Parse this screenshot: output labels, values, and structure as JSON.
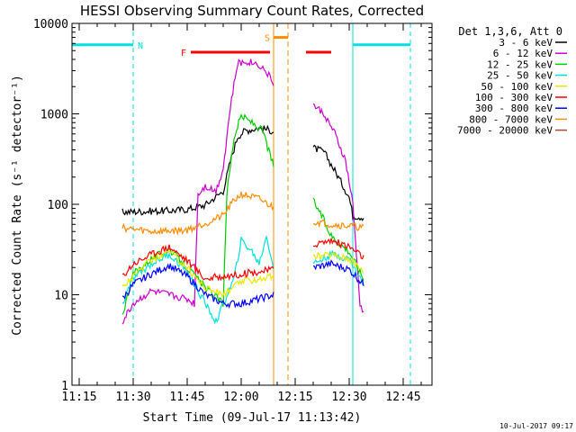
{
  "chart_data": {
    "type": "line",
    "title": "HESSI Observing Summary Count Rates, Corrected",
    "xlabel": "Start Time (09-Jul-17 11:13:42)",
    "ylabel": "Corrected Count Rate (s⁻¹ detector⁻¹)",
    "y_scale": "log",
    "ylim": [
      1,
      10000
    ],
    "xlim_minutes": [
      "11:13",
      "12:53"
    ],
    "x_ticks": [
      "11:15",
      "11:30",
      "11:45",
      "12:00",
      "12:15",
      "12:30",
      "12:45"
    ],
    "y_ticks": [
      "1",
      "10",
      "100",
      "1000",
      "10000"
    ],
    "footer": "10-Jul-2017 09:17",
    "legend_header": "Det 1,3,6, Att 0",
    "legend_position": "outside-right",
    "series": [
      {
        "name": "3 - 6 keV",
        "color": "#000000",
        "points": [
          [
            "11:27",
            82
          ],
          [
            "11:35",
            84
          ],
          [
            "11:40",
            85
          ],
          [
            "11:45",
            88
          ],
          [
            "11:50",
            98
          ],
          [
            "11:55",
            140
          ],
          [
            "11:57",
            300
          ],
          [
            "11:59",
            560
          ],
          [
            "12:01",
            650
          ],
          [
            "12:05",
            700
          ],
          [
            "12:08",
            660
          ],
          [
            "12:09",
            640
          ],
          [
            "12:20",
            420
          ],
          [
            "12:23",
            380
          ],
          [
            "12:27",
            200
          ],
          [
            "12:30",
            120
          ],
          [
            "12:31",
            75
          ],
          [
            "12:34",
            72
          ]
        ]
      },
      {
        "name": "6 - 12 keV",
        "color": "#cc00cc",
        "points": [
          [
            "11:27",
            5
          ],
          [
            "11:30",
            8
          ],
          [
            "11:35",
            11
          ],
          [
            "11:40",
            10
          ],
          [
            "11:45",
            9
          ],
          [
            "11:47",
            8
          ],
          [
            "11:48",
            130
          ],
          [
            "11:50",
            160
          ],
          [
            "11:53",
            140
          ],
          [
            "11:55",
            250
          ],
          [
            "11:57",
            1200
          ],
          [
            "11:59",
            3600
          ],
          [
            "12:02",
            3800
          ],
          [
            "12:05",
            3500
          ],
          [
            "12:07",
            2900
          ],
          [
            "12:09",
            2200
          ],
          [
            "12:20",
            1250
          ],
          [
            "12:23",
            1000
          ],
          [
            "12:26",
            600
          ],
          [
            "12:29",
            300
          ],
          [
            "12:31",
            100
          ],
          [
            "12:33",
            8
          ],
          [
            "12:34",
            6
          ]
        ]
      },
      {
        "name": "12 - 25 keV",
        "color": "#00cc00",
        "points": [
          [
            "11:27",
            6
          ],
          [
            "11:30",
            17
          ],
          [
            "11:35",
            25
          ],
          [
            "11:40",
            32
          ],
          [
            "11:45",
            20
          ],
          [
            "11:50",
            12
          ],
          [
            "11:55",
            8
          ],
          [
            "11:56",
            130
          ],
          [
            "11:58",
            550
          ],
          [
            "12:00",
            950
          ],
          [
            "12:03",
            800
          ],
          [
            "12:06",
            650
          ],
          [
            "12:08",
            350
          ],
          [
            "12:09",
            270
          ],
          [
            "12:20",
            110
          ],
          [
            "12:22",
            80
          ],
          [
            "12:25",
            45
          ],
          [
            "12:30",
            30
          ],
          [
            "12:34",
            15
          ]
        ]
      },
      {
        "name": "25 - 50 keV",
        "color": "#00e0e0",
        "points": [
          [
            "11:27",
            8
          ],
          [
            "11:30",
            15
          ],
          [
            "11:35",
            22
          ],
          [
            "11:40",
            28
          ],
          [
            "11:45",
            18
          ],
          [
            "11:50",
            8
          ],
          [
            "11:53",
            5
          ],
          [
            "11:58",
            15
          ],
          [
            "12:00",
            40
          ],
          [
            "12:03",
            30
          ],
          [
            "12:05",
            22
          ],
          [
            "12:07",
            45
          ],
          [
            "12:09",
            20
          ],
          [
            "12:20",
            22
          ],
          [
            "12:25",
            28
          ],
          [
            "12:30",
            25
          ],
          [
            "12:34",
            13
          ]
        ]
      },
      {
        "name": "50 - 100 keV",
        "color": "#e8e800",
        "points": [
          [
            "11:27",
            12
          ],
          [
            "11:30",
            16
          ],
          [
            "11:35",
            24
          ],
          [
            "11:40",
            30
          ],
          [
            "11:45",
            20
          ],
          [
            "11:50",
            12
          ],
          [
            "11:55",
            10
          ],
          [
            "12:00",
            14
          ],
          [
            "12:05",
            15
          ],
          [
            "12:09",
            16
          ],
          [
            "12:20",
            26
          ],
          [
            "12:25",
            28
          ],
          [
            "12:30",
            25
          ],
          [
            "12:34",
            18
          ]
        ]
      },
      {
        "name": "100 - 300 keV",
        "color": "#ff0000",
        "points": [
          [
            "11:27",
            16
          ],
          [
            "11:30",
            22
          ],
          [
            "11:35",
            28
          ],
          [
            "11:40",
            34
          ],
          [
            "11:45",
            24
          ],
          [
            "11:50",
            15
          ],
          [
            "11:55",
            16
          ],
          [
            "12:00",
            17
          ],
          [
            "12:05",
            18
          ],
          [
            "12:09",
            19
          ],
          [
            "12:20",
            36
          ],
          [
            "12:25",
            40
          ],
          [
            "12:30",
            34
          ],
          [
            "12:34",
            26
          ]
        ]
      },
      {
        "name": "300 - 800 keV",
        "color": "#0000ff",
        "points": [
          [
            "11:27",
            9
          ],
          [
            "11:30",
            13
          ],
          [
            "11:35",
            17
          ],
          [
            "11:40",
            21
          ],
          [
            "11:45",
            16
          ],
          [
            "11:50",
            10
          ],
          [
            "11:55",
            8
          ],
          [
            "12:00",
            8
          ],
          [
            "12:05",
            9
          ],
          [
            "12:09",
            10
          ],
          [
            "12:20",
            20
          ],
          [
            "12:25",
            22
          ],
          [
            "12:30",
            19
          ],
          [
            "12:34",
            13
          ]
        ]
      },
      {
        "name": "800 - 7000 keV",
        "color": "#ff8c00",
        "points": [
          [
            "11:27",
            55
          ],
          [
            "11:35",
            50
          ],
          [
            "11:45",
            52
          ],
          [
            "11:50",
            62
          ],
          [
            "11:55",
            75
          ],
          [
            "11:58",
            110
          ],
          [
            "12:00",
            130
          ],
          [
            "12:05",
            115
          ],
          [
            "12:09",
            92
          ],
          [
            "12:20",
            65
          ],
          [
            "12:25",
            60
          ],
          [
            "12:30",
            58
          ],
          [
            "12:34",
            55
          ]
        ]
      },
      {
        "name": "7000 - 20000 keV",
        "color": "#a0522d",
        "points": []
      }
    ],
    "annotations": [
      {
        "label": "N",
        "color": "#00e0e0",
        "type": "night",
        "segments": [
          [
            "11:13",
            "11:30"
          ],
          [
            "12:31",
            "12:47"
          ]
        ],
        "level": 5800
      },
      {
        "label": "F",
        "color": "#ff0000",
        "type": "flare",
        "segments": [
          [
            "11:46",
            "12:08"
          ],
          [
            "12:18",
            "12:25"
          ]
        ],
        "level": 4800
      },
      {
        "label": "S",
        "color": "#ff8c00",
        "type": "saa",
        "segments": [
          [
            "12:09",
            "12:13"
          ]
        ],
        "level": 7000
      }
    ],
    "grid": false
  }
}
